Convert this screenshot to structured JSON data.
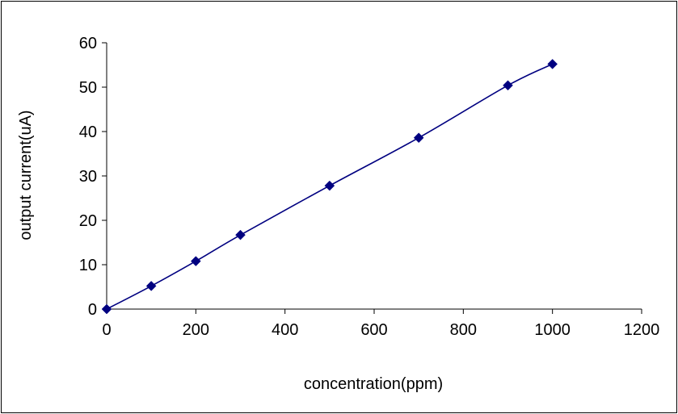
{
  "chart_data": {
    "type": "line",
    "title": "",
    "xlabel": "concentration(ppm)",
    "ylabel": "output current(uA)",
    "xlim": [
      0,
      1200
    ],
    "ylim": [
      0,
      60
    ],
    "x_ticks": [
      0,
      200,
      400,
      600,
      800,
      1000,
      1200
    ],
    "y_ticks": [
      0,
      10,
      20,
      30,
      40,
      50,
      60
    ],
    "grid": false,
    "legend": "none",
    "series": [
      {
        "x": [
          0,
          100,
          200,
          300,
          500,
          700,
          900,
          1000
        ],
        "y": [
          0,
          5.2,
          10.8,
          16.7,
          27.8,
          38.6,
          50.4,
          55.2
        ],
        "color": "#000080",
        "marker": "diamond",
        "smooth": true
      }
    ]
  }
}
